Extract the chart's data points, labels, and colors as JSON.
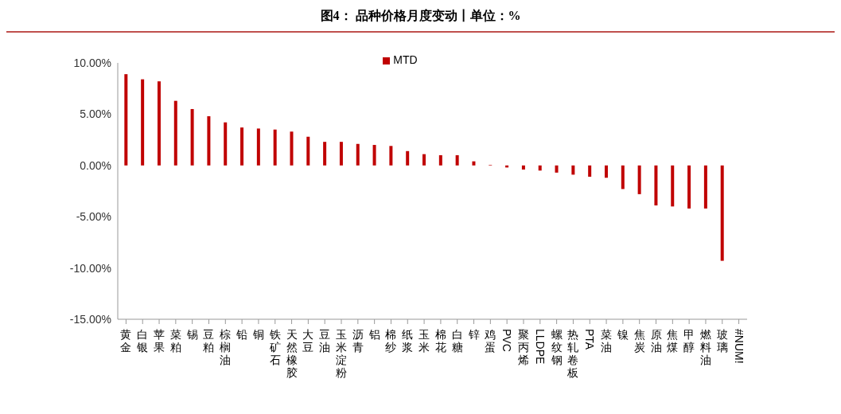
{
  "chart_data": {
    "type": "bar",
    "title": "图4：  品种价格月度变动丨单位：%",
    "categories": [
      "黄金",
      "白银",
      "苹果",
      "菜粕",
      "锡",
      "豆粕",
      "棕榈油",
      "铅",
      "铜",
      "铁矿石",
      "天然橡胶",
      "大豆",
      "豆油",
      "玉米淀粉",
      "沥青",
      "铝",
      "棉纱",
      "纸浆",
      "玉米",
      "棉花",
      "白糖",
      "锌",
      "鸡蛋",
      "PVC",
      "聚丙烯",
      "LLDPE",
      "螺纹钢",
      "热轧卷板",
      "PTA",
      "菜油",
      "镍",
      "焦炭",
      "原油",
      "焦煤",
      "甲醇",
      "燃料油",
      "玻璃",
      "#NUM!"
    ],
    "series": [
      {
        "name": "MTD",
        "color": "#c00000",
        "values": [
          8.9,
          8.4,
          8.2,
          6.3,
          5.5,
          4.8,
          4.2,
          3.7,
          3.6,
          3.5,
          3.3,
          2.8,
          2.3,
          2.3,
          2.1,
          2.0,
          1.9,
          1.4,
          1.1,
          1.0,
          1.0,
          0.4,
          0.05,
          -0.2,
          -0.4,
          -0.5,
          -0.7,
          -0.9,
          -1.1,
          -1.2,
          -2.3,
          -2.8,
          -3.9,
          -4.0,
          -4.2,
          -4.2,
          -9.3,
          null
        ]
      }
    ],
    "ylim": [
      -15,
      10
    ],
    "yticks": [
      {
        "value": -15,
        "label": "-15.00%"
      },
      {
        "value": -10,
        "label": "-10.00%"
      },
      {
        "value": -5,
        "label": "-5.00%"
      },
      {
        "value": 0,
        "label": "0.00%"
      },
      {
        "value": 5,
        "label": "5.00%"
      },
      {
        "value": 10,
        "label": "10.00%"
      }
    ],
    "grid": false,
    "legend": "top"
  }
}
